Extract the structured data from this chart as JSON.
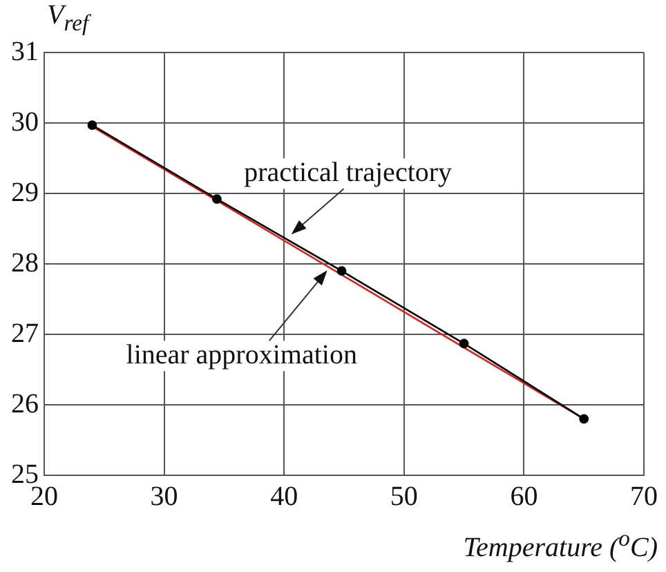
{
  "chart_data": {
    "type": "line",
    "xlabel": "Temperature ($^{o}$C)",
    "ylabel": "V$_{ref}$",
    "x": [
      24.0,
      34.4,
      44.8,
      55.0,
      65.0
    ],
    "series": [
      {
        "color": "#000000",
        "marker": "circle",
        "values": [
          29.97,
          28.92,
          27.9,
          26.87,
          25.8
        ]
      },
      {
        "color": "#e0201c",
        "marker": "none",
        "x": [
          24.0,
          65.0
        ],
        "values": [
          29.95,
          25.8
        ]
      }
    ],
    "xlim": [
      20,
      70
    ],
    "xticks": [
      20,
      30,
      40,
      50,
      60,
      70
    ],
    "ylim": [
      25,
      31
    ],
    "yticks": [
      25,
      26,
      27,
      28,
      29,
      30,
      31
    ],
    "grid": true,
    "legend": false,
    "line_style": "solid",
    "annotations": [
      {
        "text": "practical trajectory",
        "x": 40.6,
        "y": 28.42
      },
      {
        "text": "linear approximation",
        "x": 43.6,
        "y": 27.91
      }
    ]
  }
}
